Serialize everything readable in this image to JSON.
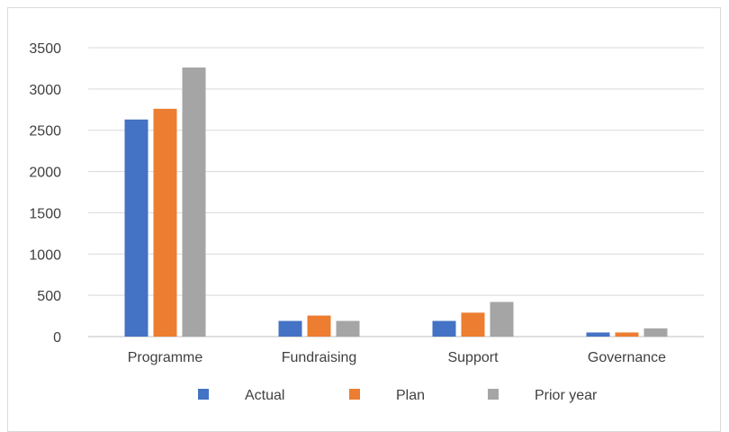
{
  "chart_data": {
    "type": "bar",
    "title": "",
    "xlabel": "",
    "ylabel": "",
    "categories": [
      "Programme",
      "Fundraising",
      "Support",
      "Governance"
    ],
    "series": [
      {
        "name": "Actual",
        "color": "#4472c4",
        "values": [
          2630,
          190,
          190,
          50
        ]
      },
      {
        "name": "Plan",
        "color": "#ed7d31",
        "values": [
          2760,
          255,
          290,
          50
        ]
      },
      {
        "name": "Prior year",
        "color": "#a5a5a5",
        "values": [
          3260,
          190,
          420,
          100
        ]
      }
    ],
    "ylim": [
      0,
      3500
    ],
    "yticks": [
      0,
      500,
      1000,
      1500,
      2000,
      2500,
      3000,
      3500
    ],
    "grid": true,
    "legend": "bottom"
  }
}
